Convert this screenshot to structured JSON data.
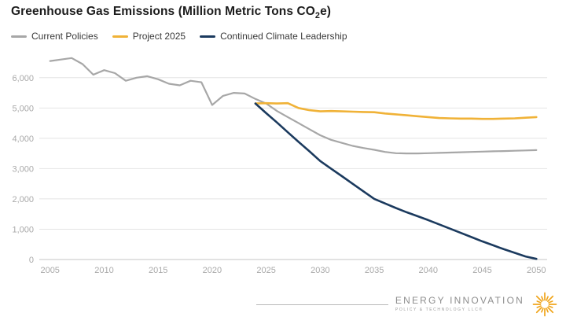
{
  "title": {
    "prefix": "Greenhouse Gas Emissions (Million Metric Tons CO",
    "subscript": "2",
    "suffix": "e)"
  },
  "legend": [
    {
      "label": "Current Policies",
      "color": "#a7a7a7"
    },
    {
      "label": "Project 2025",
      "color": "#f0b237"
    },
    {
      "label": "Continued Climate Leadership",
      "color": "#1b3a5e"
    }
  ],
  "chart_data": {
    "type": "line",
    "title": "Greenhouse Gas Emissions (Million Metric Tons CO2e)",
    "xlabel": "",
    "ylabel": "",
    "x": [
      2005,
      2006,
      2007,
      2008,
      2009,
      2010,
      2011,
      2012,
      2013,
      2014,
      2015,
      2016,
      2017,
      2018,
      2019,
      2020,
      2021,
      2022,
      2023,
      2024,
      2025,
      2026,
      2027,
      2028,
      2029,
      2030,
      2031,
      2032,
      2033,
      2034,
      2035,
      2036,
      2037,
      2038,
      2039,
      2040,
      2041,
      2042,
      2043,
      2044,
      2045,
      2046,
      2047,
      2048,
      2049,
      2050
    ],
    "series": [
      {
        "name": "Current Policies",
        "color": "#a7a7a7",
        "width": 2.2,
        "values": [
          6550,
          6600,
          6650,
          6450,
          6100,
          6250,
          6150,
          5900,
          6000,
          6050,
          5950,
          5800,
          5750,
          5900,
          5850,
          5100,
          5400,
          5500,
          5480,
          5300,
          5150,
          4900,
          4700,
          4500,
          4300,
          4100,
          3950,
          3850,
          3750,
          3680,
          3620,
          3550,
          3510,
          3500,
          3500,
          3510,
          3520,
          3530,
          3540,
          3550,
          3560,
          3570,
          3580,
          3590,
          3600,
          3610
        ]
      },
      {
        "name": "Project 2025",
        "color": "#f0b237",
        "width": 2.6,
        "values": [
          null,
          null,
          null,
          null,
          null,
          null,
          null,
          null,
          null,
          null,
          null,
          null,
          null,
          null,
          null,
          null,
          null,
          null,
          null,
          5150,
          5160,
          5150,
          5160,
          5000,
          4930,
          4890,
          4900,
          4890,
          4880,
          4870,
          4860,
          4820,
          4790,
          4760,
          4730,
          4700,
          4670,
          4660,
          4650,
          4650,
          4640,
          4640,
          4650,
          4660,
          4680,
          4700
        ]
      },
      {
        "name": "Continued Climate Leadership",
        "color": "#1b3a5e",
        "width": 2.6,
        "values": [
          null,
          null,
          null,
          null,
          null,
          null,
          null,
          null,
          null,
          null,
          null,
          null,
          null,
          null,
          null,
          null,
          null,
          null,
          null,
          5150,
          4830,
          4520,
          4200,
          3880,
          3570,
          3250,
          3000,
          2750,
          2500,
          2250,
          2000,
          1850,
          1700,
          1560,
          1430,
          1300,
          1160,
          1020,
          880,
          740,
          600,
          470,
          340,
          220,
          100,
          20
        ]
      }
    ],
    "xticks": [
      2005,
      2010,
      2015,
      2020,
      2025,
      2030,
      2035,
      2040,
      2045,
      2050
    ],
    "yticks": [
      0,
      1000,
      2000,
      3000,
      4000,
      5000,
      6000
    ],
    "xlim": [
      2004,
      2051
    ],
    "ylim": [
      0,
      6800
    ],
    "grid": true,
    "legend_position": "top-left"
  },
  "footer": {
    "brand_name": "ENERGY INNOVATION",
    "brand_sub": "POLICY & TECHNOLOGY LLC®"
  }
}
